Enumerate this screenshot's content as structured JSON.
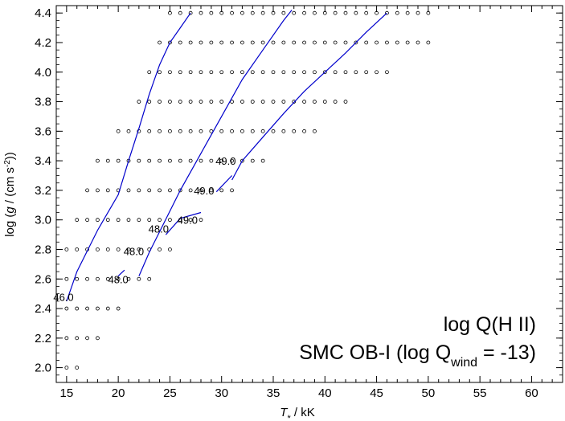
{
  "chart_data": {
    "type": "line",
    "xlabel_symbol": "T",
    "xlabel_subscript": "*",
    "xlabel_unit": " / kK",
    "ylabel_parts": [
      "log (",
      "g",
      " / (cm s",
      "-2",
      "))"
    ],
    "xlim": [
      14,
      63
    ],
    "ylim": [
      1.9,
      4.45
    ],
    "xticks": [
      15,
      20,
      25,
      30,
      35,
      40,
      45,
      50,
      55,
      60
    ],
    "yticks": [
      2.0,
      2.2,
      2.4,
      2.6,
      2.8,
      3.0,
      3.2,
      3.4,
      3.6,
      3.8,
      4.0,
      4.2,
      4.4
    ],
    "ytick_labels": [
      "2.0",
      "2.2",
      "2.4",
      "2.6",
      "2.8",
      "3.0",
      "3.2",
      "3.4",
      "3.6",
      "3.8",
      "4.0",
      "4.2",
      "4.4"
    ],
    "grid_rows": [
      {
        "logg": 2.0,
        "teff_min": 15,
        "teff_max": 16
      },
      {
        "logg": 2.2,
        "teff_min": 15,
        "teff_max": 18
      },
      {
        "logg": 2.4,
        "teff_min": 15,
        "teff_max": 20
      },
      {
        "logg": 2.6,
        "teff_min": 15,
        "teff_max": 23
      },
      {
        "logg": 2.8,
        "teff_min": 15,
        "teff_max": 25
      },
      {
        "logg": 3.0,
        "teff_min": 16,
        "teff_max": 28
      },
      {
        "logg": 3.2,
        "teff_min": 17,
        "teff_max": 31
      },
      {
        "logg": 3.4,
        "teff_min": 18,
        "teff_max": 34
      },
      {
        "logg": 3.6,
        "teff_min": 20,
        "teff_max": 39
      },
      {
        "logg": 3.8,
        "teff_min": 22,
        "teff_max": 42
      },
      {
        "logg": 4.0,
        "teff_min": 23,
        "teff_max": 46
      },
      {
        "logg": 4.2,
        "teff_min": 24,
        "teff_max": 50
      },
      {
        "logg": 4.4,
        "teff_min": 25,
        "teff_max": 50
      }
    ],
    "series": [
      {
        "color": "#0000cc",
        "segments": [
          [
            [
              15.0,
              2.45
            ],
            [
              16.0,
              2.65
            ],
            [
              18.0,
              2.93
            ],
            [
              20.0,
              3.17
            ],
            [
              21.0,
              3.4
            ],
            [
              22.0,
              3.62
            ],
            [
              23.0,
              3.85
            ],
            [
              24.0,
              4.05
            ],
            [
              25.0,
              4.2
            ],
            [
              26.0,
              4.3
            ],
            [
              27.0,
              4.4
            ]
          ]
        ]
      },
      {
        "color": "#0000cc",
        "segments": [
          [
            [
              22.0,
              2.62
            ],
            [
              23.0,
              2.78
            ],
            [
              24.0,
              2.92
            ],
            [
              26.0,
              3.2
            ],
            [
              28.0,
              3.45
            ],
            [
              30.0,
              3.7
            ],
            [
              32.0,
              3.95
            ],
            [
              34.0,
              4.15
            ],
            [
              36.0,
              4.35
            ],
            [
              36.8,
              4.42
            ]
          ],
          [
            [
              20.0,
              2.62
            ],
            [
              20.6,
              2.66
            ]
          ],
          [
            [
              24.6,
              2.9
            ],
            [
              26.0,
              3.01
            ],
            [
              28.0,
              3.05
            ]
          ]
        ]
      },
      {
        "color": "#0000cc",
        "segments": [
          [
            [
              29.5,
              3.19
            ],
            [
              31.0,
              3.3
            ]
          ],
          [
            [
              31.0,
              3.27
            ],
            [
              32.0,
              3.4
            ],
            [
              34.0,
              3.56
            ],
            [
              36.0,
              3.72
            ],
            [
              38.0,
              3.87
            ],
            [
              40.0,
              4.0
            ],
            [
              42.0,
              4.13
            ],
            [
              44.0,
              4.27
            ],
            [
              46.0,
              4.4
            ]
          ]
        ]
      }
    ],
    "contour_labels": [
      {
        "text": "46.0",
        "x": 14.7,
        "y": 2.48
      },
      {
        "text": "48.0",
        "x": 20.0,
        "y": 2.6
      },
      {
        "text": "48.0",
        "x": 21.5,
        "y": 2.79
      },
      {
        "text": "48.0",
        "x": 23.9,
        "y": 2.94
      },
      {
        "text": "49.0",
        "x": 26.7,
        "y": 3.0
      },
      {
        "text": "49.0",
        "x": 28.3,
        "y": 3.2
      },
      {
        "text": "49.0",
        "x": 30.4,
        "y": 3.4
      }
    ],
    "annotation_line1": "log Q(H II)",
    "annotation_line2_pre": "SMC OB-I (log Q",
    "annotation_line2_sub": "wind",
    "annotation_line2_post": " = -13)"
  }
}
